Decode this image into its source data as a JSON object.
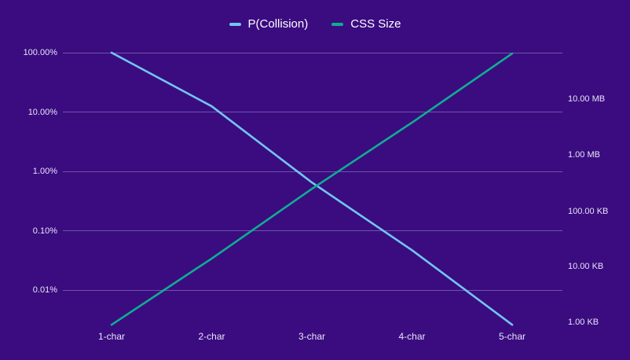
{
  "chart_data": {
    "type": "line",
    "title": "",
    "categories": [
      "1-char",
      "2-char",
      "3-char",
      "4-char",
      "5-char"
    ],
    "series": [
      {
        "name": "P(Collision)",
        "axis": "left",
        "unit": "%",
        "color": "#72C5F1",
        "values": [
          100,
          12.5,
          0.65,
          0.047,
          0.0026
        ]
      },
      {
        "name": "CSS Size",
        "axis": "right",
        "unit": "KB",
        "color": "#0FAD92",
        "values": [
          0.9,
          14,
          250,
          3900,
          68000
        ]
      }
    ],
    "left_axis": {
      "scale": "log",
      "unit": "%",
      "ticks": [
        {
          "label": "100.00%",
          "value": 100
        },
        {
          "label": "10.00%",
          "value": 10
        },
        {
          "label": "1.00%",
          "value": 1
        },
        {
          "label": "0.10%",
          "value": 0.1
        },
        {
          "label": "0.01%",
          "value": 0.01
        }
      ]
    },
    "right_axis": {
      "scale": "log",
      "unit": "KB",
      "ticks": [
        {
          "label": "10.00 MB",
          "value": 10240
        },
        {
          "label": "1.00 MB",
          "value": 1024
        },
        {
          "label": "100.00 KB",
          "value": 100
        },
        {
          "label": "10.00 KB",
          "value": 10
        },
        {
          "label": "1.00 KB",
          "value": 1
        }
      ]
    },
    "grid": true,
    "legend_position": "top",
    "colors": {
      "background": "#3A0C80",
      "gridline": "#9C8EC6",
      "tick_text": "#EAE4F6",
      "legend_text": "#FFFFFF"
    }
  }
}
